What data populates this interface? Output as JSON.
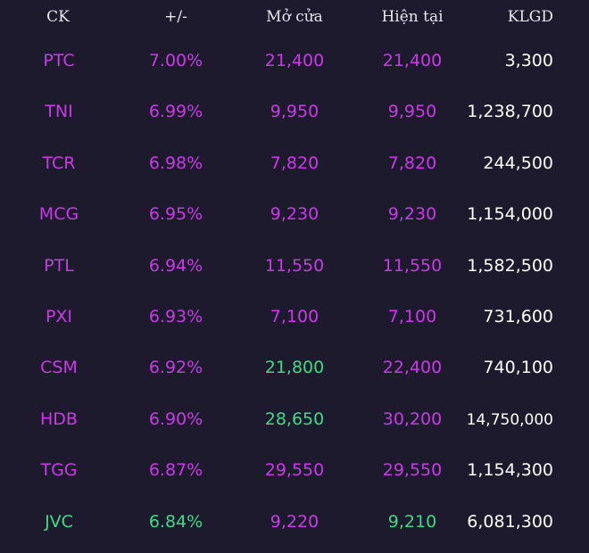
{
  "colors": {
    "background": "#1d1a2e",
    "ceiling_purple": "#c93ae6",
    "up_green": "#3ddc84",
    "text_white": "#ffffff"
  },
  "header": {
    "ck": "CK",
    "change": "+/-",
    "open": "Mở cửa",
    "current": "Hiện tại",
    "volume": "KLGD"
  },
  "rows": [
    {
      "ck": "PTC",
      "change": "7.00%",
      "open": "21,400",
      "current": "21,400",
      "volume": "3,300",
      "ck_color": "purple",
      "change_color": "purple",
      "open_color": "purple",
      "current_color": "purple"
    },
    {
      "ck": "TNI",
      "change": "6.99%",
      "open": "9,950",
      "current": "9,950",
      "volume": "1,238,700",
      "ck_color": "purple",
      "change_color": "purple",
      "open_color": "purple",
      "current_color": "purple"
    },
    {
      "ck": "TCR",
      "change": "6.98%",
      "open": "7,820",
      "current": "7,820",
      "volume": "244,500",
      "ck_color": "purple",
      "change_color": "purple",
      "open_color": "purple",
      "current_color": "purple"
    },
    {
      "ck": "MCG",
      "change": "6.95%",
      "open": "9,230",
      "current": "9,230",
      "volume": "1,154,000",
      "ck_color": "purple",
      "change_color": "purple",
      "open_color": "purple",
      "current_color": "purple"
    },
    {
      "ck": "PTL",
      "change": "6.94%",
      "open": "11,550",
      "current": "11,550",
      "volume": "1,582,500",
      "ck_color": "purple",
      "change_color": "purple",
      "open_color": "purple",
      "current_color": "purple"
    },
    {
      "ck": "PXI",
      "change": "6.93%",
      "open": "7,100",
      "current": "7,100",
      "volume": "731,600",
      "ck_color": "purple",
      "change_color": "purple",
      "open_color": "purple",
      "current_color": "purple"
    },
    {
      "ck": "CSM",
      "change": "6.92%",
      "open": "21,800",
      "current": "22,400",
      "volume": "740,100",
      "ck_color": "purple",
      "change_color": "purple",
      "open_color": "green",
      "current_color": "purple"
    },
    {
      "ck": "HDB",
      "change": "6.90%",
      "open": "28,650",
      "current": "30,200",
      "volume": "14,750,000",
      "ck_color": "purple",
      "change_color": "purple",
      "open_color": "green",
      "current_color": "purple",
      "volume_small": true
    },
    {
      "ck": "TGG",
      "change": "6.87%",
      "open": "29,550",
      "current": "29,550",
      "volume": "1,154,300",
      "ck_color": "purple",
      "change_color": "purple",
      "open_color": "purple",
      "current_color": "purple"
    },
    {
      "ck": "JVC",
      "change": "6.84%",
      "open": "9,220",
      "current": "9,210",
      "volume": "6,081,300",
      "ck_color": "green",
      "change_color": "green",
      "open_color": "purple",
      "current_color": "green"
    }
  ]
}
